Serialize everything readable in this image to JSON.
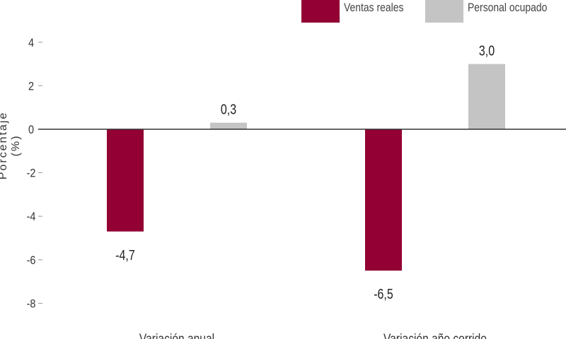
{
  "chart_data": {
    "type": "bar",
    "categories": [
      "Variación anual",
      "Variación año corrido"
    ],
    "series": [
      {
        "name": "Ventas reales",
        "values": [
          -4.7,
          -6.5
        ],
        "labels": [
          "-4,7",
          "-6,5"
        ],
        "color": "#930033"
      },
      {
        "name": "Personal ocupado",
        "values": [
          0.3,
          3.0
        ],
        "labels": [
          "0,3",
          "3,0"
        ],
        "color": "#c4c4c4"
      }
    ],
    "ylabel": "Porcentaje (%)",
    "ylim": [
      -8,
      4
    ],
    "yticks": [
      4,
      2,
      0,
      -2,
      -4,
      -6,
      -8
    ],
    "grid": false,
    "legend_position": "top-right"
  }
}
